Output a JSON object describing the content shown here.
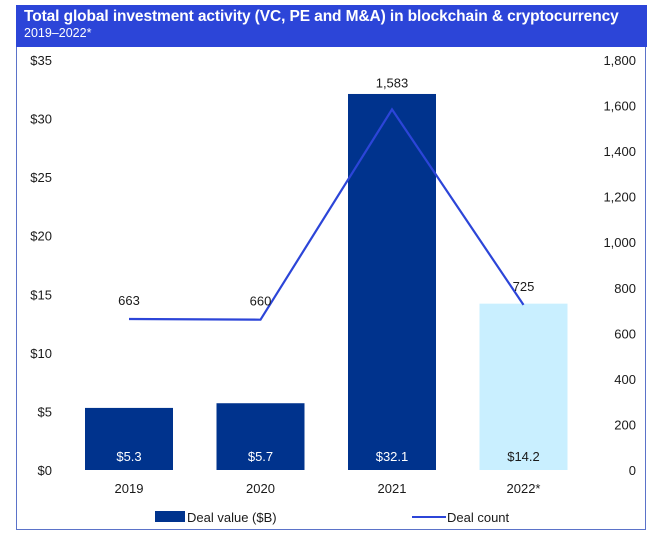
{
  "header": {
    "title": "Total global investment activity (VC, PE and M&A) in blockchain & cryptocurrency",
    "subtitle": "2019–2022*"
  },
  "colors": {
    "header_bg": "#2c45d8",
    "bar_actual": "#00338d",
    "bar_projected": "#c9efff",
    "line": "#2c45d8",
    "bar_label_on_dark": "#ffffff",
    "bar_label_on_light": "#1a1a1a"
  },
  "chart_data": {
    "type": "bar",
    "title": "Total global investment activity (VC, PE and M&A) in blockchain & cryptocurrency",
    "subtitle": "2019–2022*",
    "categories": [
      "2019",
      "2020",
      "2021",
      "2022*"
    ],
    "series": [
      {
        "name": "Deal value ($B)",
        "type": "bar",
        "axis": "left",
        "values": [
          5.3,
          5.7,
          32.1,
          14.2
        ],
        "labels": [
          "$5.3",
          "$5.7",
          "$32.1",
          "$14.2"
        ],
        "projected": [
          false,
          false,
          false,
          true
        ]
      },
      {
        "name": "Deal count",
        "type": "line",
        "axis": "right",
        "values": [
          663,
          660,
          1583,
          725
        ],
        "labels": [
          "663",
          "660",
          "1,583",
          "725"
        ]
      }
    ],
    "y_left": {
      "ylim": [
        0,
        35
      ],
      "ticks": [
        0,
        5,
        10,
        15,
        20,
        25,
        30,
        35
      ],
      "tick_labels": [
        "$0",
        "$5",
        "$10",
        "$15",
        "$20",
        "$25",
        "$30",
        "$35"
      ]
    },
    "y_right": {
      "ylim": [
        0,
        1800
      ],
      "ticks": [
        0,
        200,
        400,
        600,
        800,
        1000,
        1200,
        1400,
        1600,
        1800
      ],
      "tick_labels": [
        "0",
        "200",
        "400",
        "600",
        "800",
        "1,000",
        "1,200",
        "1,400",
        "1,600",
        "1,800"
      ]
    },
    "xlabel": "",
    "ylabel": "",
    "grid": false,
    "legend": {
      "position": "bottom",
      "entries": [
        "Deal value ($B)",
        "Deal count"
      ]
    }
  }
}
